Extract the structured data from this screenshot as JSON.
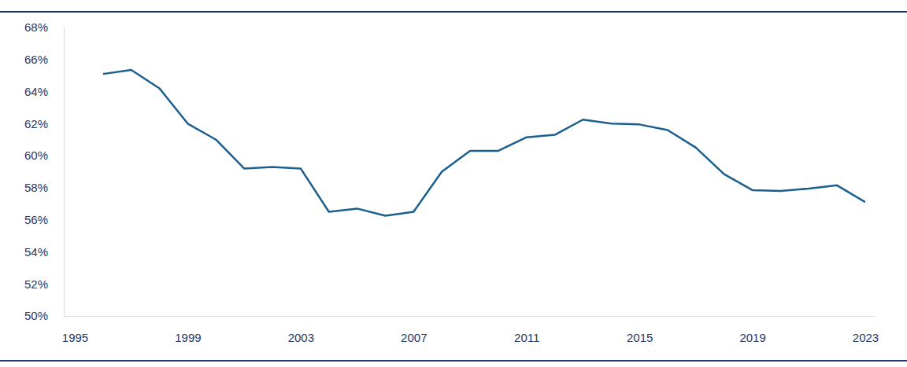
{
  "chart_data": {
    "type": "line",
    "color": "#1b5f8f",
    "x": [
      1996,
      1997,
      1998,
      1999,
      2000,
      2001,
      2002,
      2003,
      2004,
      2005,
      2006,
      2007,
      2008,
      2009,
      2010,
      2011,
      2012,
      2013,
      2014,
      2015,
      2016,
      2017,
      2018,
      2019,
      2020,
      2021,
      2022,
      2023
    ],
    "values": [
      65.1,
      65.35,
      64.2,
      62.0,
      61.0,
      59.2,
      59.3,
      59.2,
      56.5,
      56.7,
      56.25,
      56.5,
      59.0,
      60.3,
      60.3,
      61.15,
      61.3,
      62.25,
      62.0,
      61.95,
      61.6,
      60.5,
      58.85,
      57.85,
      57.8,
      57.95,
      58.15,
      57.1
    ],
    "xlim": [
      1995,
      2023
    ],
    "xticks": [
      1995,
      1999,
      2003,
      2007,
      2011,
      2015,
      2019,
      2023
    ],
    "ylim": [
      50,
      68
    ],
    "yticks": [
      {
        "value": 50,
        "label": "50%"
      },
      {
        "value": 52,
        "label": "52%"
      },
      {
        "value": 54,
        "label": "54%"
      },
      {
        "value": 56,
        "label": "56%"
      },
      {
        "value": 58,
        "label": "58%"
      },
      {
        "value": 60,
        "label": "60%"
      },
      {
        "value": 62,
        "label": "62%"
      },
      {
        "value": 64,
        "label": "64%"
      },
      {
        "value": 66,
        "label": "66%"
      },
      {
        "value": 68,
        "label": "68%"
      }
    ],
    "grid": false
  }
}
